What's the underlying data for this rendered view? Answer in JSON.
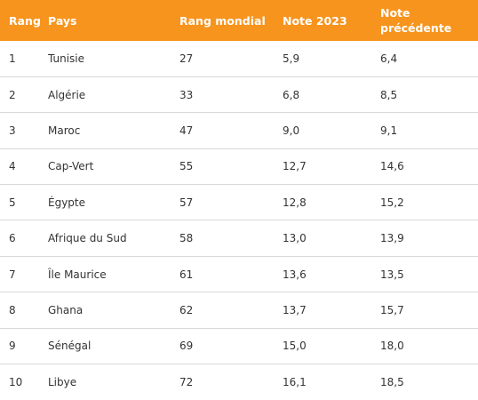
{
  "header": {
    "rank": "Rang",
    "country": "Pays",
    "world_rank": "Rang mondial",
    "score_2023": "Note 2023",
    "score_previous_line1": "Note",
    "score_previous_line2": "précédente"
  },
  "rows": [
    {
      "rank": "1",
      "country": "Tunisie",
      "world_rank": "27",
      "score_2023": "5,9",
      "score_previous": "6,4"
    },
    {
      "rank": "2",
      "country": "Algérie",
      "world_rank": "33",
      "score_2023": "6,8",
      "score_previous": "8,5"
    },
    {
      "rank": "3",
      "country": "Maroc",
      "world_rank": "47",
      "score_2023": "9,0",
      "score_previous": "9,1"
    },
    {
      "rank": "4",
      "country": "Cap-Vert",
      "world_rank": "55",
      "score_2023": "12,7",
      "score_previous": "14,6"
    },
    {
      "rank": "5",
      "country": "Égypte",
      "world_rank": "57",
      "score_2023": "12,8",
      "score_previous": "15,2"
    },
    {
      "rank": "6",
      "country": "Afrique du Sud",
      "world_rank": "58",
      "score_2023": "13,0",
      "score_previous": "13,9"
    },
    {
      "rank": "7",
      "country": "Île Maurice",
      "world_rank": "61",
      "score_2023": "13,6",
      "score_previous": "13,5"
    },
    {
      "rank": "8",
      "country": "Ghana",
      "world_rank": "62",
      "score_2023": "13,7",
      "score_previous": "15,7"
    },
    {
      "rank": "9",
      "country": "Sénégal",
      "world_rank": "69",
      "score_2023": "15,0",
      "score_previous": "18,0"
    },
    {
      "rank": "10",
      "country": "Libye",
      "world_rank": "72",
      "score_2023": "16,1",
      "score_previous": "18,5"
    }
  ],
  "colors": {
    "header_background": "#f7941d",
    "header_text": "#ffffff",
    "row_text": "#333333",
    "row_divider": "#d9d9d9"
  }
}
